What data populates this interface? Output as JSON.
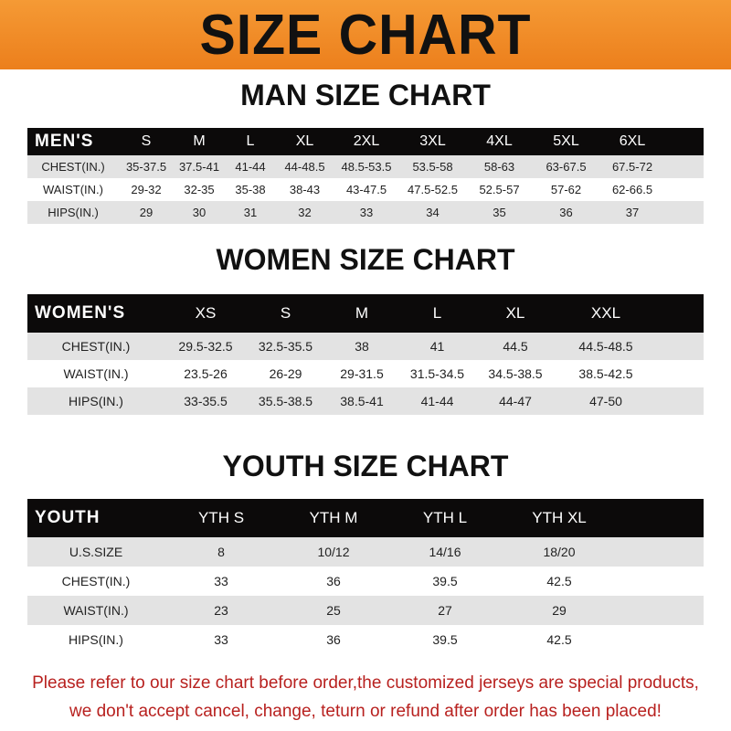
{
  "banner_title": "SIZE CHART",
  "men": {
    "title": "MAN SIZE CHART",
    "header": [
      "MEN'S",
      "S",
      "M",
      "L",
      "XL",
      "2XL",
      "3XL",
      "4XL",
      "5XL",
      "6XL"
    ],
    "rows": [
      [
        "CHEST(IN.)",
        "35-37.5",
        "37.5-41",
        "41-44",
        "44-48.5",
        "48.5-53.5",
        "53.5-58",
        "58-63",
        "63-67.5",
        "67.5-72"
      ],
      [
        "WAIST(IN.)",
        "29-32",
        "32-35",
        "35-38",
        "38-43",
        "43-47.5",
        "47.5-52.5",
        "52.5-57",
        "57-62",
        "62-66.5"
      ],
      [
        "HIPS(IN.)",
        "29",
        "30",
        "31",
        "32",
        "33",
        "34",
        "35",
        "36",
        "37"
      ]
    ]
  },
  "women": {
    "title": "WOMEN SIZE CHART",
    "header": [
      "WOMEN'S",
      "XS",
      "S",
      "M",
      "L",
      "XL",
      "XXL"
    ],
    "rows": [
      [
        "CHEST(IN.)",
        "29.5-32.5",
        "32.5-35.5",
        "38",
        "41",
        "44.5",
        "44.5-48.5"
      ],
      [
        "WAIST(IN.)",
        "23.5-26",
        "26-29",
        "29-31.5",
        "31.5-34.5",
        "34.5-38.5",
        "38.5-42.5"
      ],
      [
        "HIPS(IN.)",
        "33-35.5",
        "35.5-38.5",
        "38.5-41",
        "41-44",
        "44-47",
        "47-50"
      ]
    ]
  },
  "youth": {
    "title": "YOUTH SIZE CHART",
    "header": [
      "YOUTH",
      "YTH S",
      "YTH M",
      "YTH L",
      "YTH XL"
    ],
    "rows": [
      [
        "U.S.SIZE",
        "8",
        "10/12",
        "14/16",
        "18/20"
      ],
      [
        "CHEST(IN.)",
        "33",
        "36",
        "39.5",
        "42.5"
      ],
      [
        "WAIST(IN.)",
        "23",
        "25",
        "27",
        "29"
      ],
      [
        "HIPS(IN.)",
        "33",
        "36",
        "39.5",
        "42.5"
      ]
    ]
  },
  "note": {
    "line1": "Please refer to our size chart before order,the customized jerseys are special products,",
    "line2": "we don't accept cancel, change, teturn or refund after order has been placed!"
  },
  "colors": {
    "banner": "#ef8a25",
    "header_row": "#0c0a0a",
    "stripe": "#e3e3e3",
    "note": "#b8211f"
  }
}
